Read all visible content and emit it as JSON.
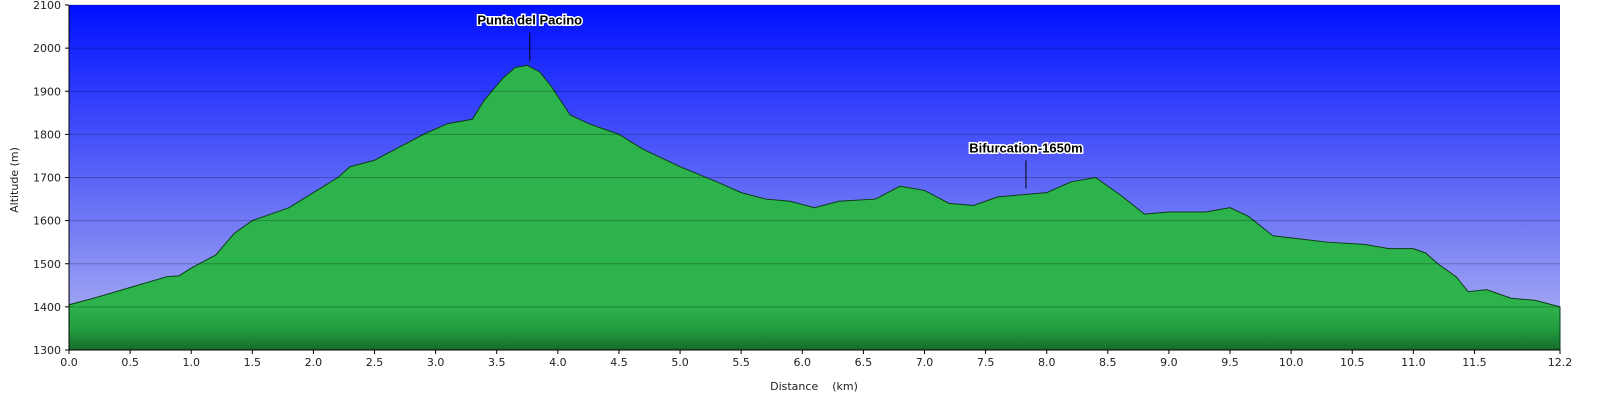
{
  "chart_data": {
    "type": "area",
    "xlabel": "Distance    (km)",
    "ylabel": "Altitude (m)",
    "color": "#22a844",
    "grid": true,
    "xlim": [
      0,
      12.2
    ],
    "ylim": [
      1300,
      2100
    ],
    "yticks": [
      1300,
      1400,
      1500,
      1600,
      1700,
      1800,
      1900,
      2000,
      2100
    ],
    "xticks": [
      {
        "value": 0,
        "label": "0.0"
      },
      0.5,
      {
        "value": 1,
        "label": "1.0"
      },
      1.5,
      {
        "value": 2,
        "label": "2.0"
      },
      2.5,
      {
        "value": 3,
        "label": "3.0"
      },
      3.5,
      {
        "value": 4,
        "label": "4.0"
      },
      4.5,
      {
        "value": 5,
        "label": "5.0"
      },
      5.5,
      {
        "value": 6,
        "label": "6.0"
      },
      6.5,
      {
        "value": 7,
        "label": "7.0"
      },
      7.5,
      {
        "value": 8,
        "label": "8.0"
      },
      8.5,
      {
        "value": 9,
        "label": "9.0"
      },
      9.5,
      {
        "value": 10,
        "label": "10.0"
      },
      10.5,
      {
        "value": 11,
        "label": "11.0"
      },
      11.5,
      12.2
    ],
    "x": [
      0,
      0.2,
      0.5,
      0.8,
      0.9,
      1.0,
      1.2,
      1.35,
      1.5,
      1.8,
      2.0,
      2.2,
      2.3,
      2.5,
      2.7,
      2.9,
      3.1,
      3.3,
      3.4,
      3.55,
      3.65,
      3.75,
      3.85,
      3.95,
      4.1,
      4.25,
      4.5,
      4.7,
      5.0,
      5.3,
      5.5,
      5.7,
      5.9,
      6.1,
      6.3,
      6.6,
      6.8,
      7.0,
      7.2,
      7.4,
      7.6,
      7.8,
      8.0,
      8.2,
      8.4,
      8.6,
      8.8,
      9.0,
      9.3,
      9.5,
      9.65,
      9.85,
      10.0,
      10.3,
      10.6,
      10.8,
      11.0,
      11.1,
      11.2,
      11.35,
      11.45,
      11.6,
      11.8,
      12.0,
      12.2
    ],
    "values": [
      1405,
      1420,
      1445,
      1470,
      1472,
      1490,
      1520,
      1570,
      1600,
      1630,
      1665,
      1700,
      1725,
      1740,
      1770,
      1800,
      1825,
      1835,
      1880,
      1930,
      1955,
      1960,
      1945,
      1910,
      1845,
      1825,
      1800,
      1765,
      1725,
      1690,
      1665,
      1650,
      1645,
      1630,
      1645,
      1650,
      1680,
      1670,
      1640,
      1635,
      1655,
      1660,
      1665,
      1690,
      1700,
      1660,
      1615,
      1620,
      1620,
      1630,
      1610,
      1565,
      1560,
      1550,
      1545,
      1535,
      1535,
      1525,
      1500,
      1470,
      1435,
      1440,
      1420,
      1415,
      1400
    ],
    "annotations": [
      {
        "label": "Punta del Pacino",
        "x": 3.77
      },
      {
        "label": "Bifurcation-1650m",
        "x": 7.83
      }
    ]
  }
}
